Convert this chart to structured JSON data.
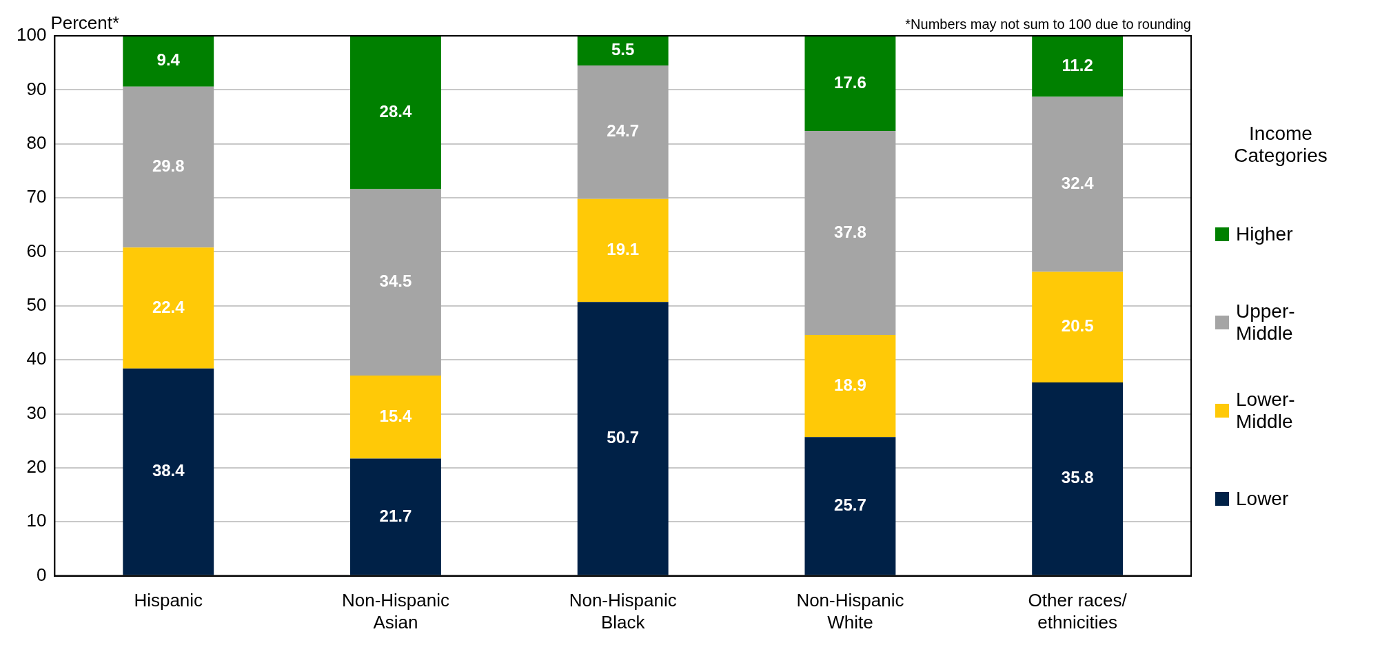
{
  "chart_data": {
    "type": "bar",
    "stacked": true,
    "ylabel": "Percent*",
    "annotations": [
      "*Numbers may not sum to 100 due to rounding"
    ],
    "categories": [
      "Hispanic",
      "Non-Hispanic Asian",
      "Non-Hispanic Black",
      "Non-Hispanic White",
      "Other races/ ethnicities"
    ],
    "series": [
      {
        "name": "Lower",
        "color": "#002147",
        "values": [
          38.4,
          21.7,
          50.7,
          25.7,
          35.8
        ]
      },
      {
        "name": "Lower-Middle",
        "color": "#ffc907",
        "values": [
          22.4,
          15.4,
          19.1,
          18.9,
          20.5
        ]
      },
      {
        "name": "Upper-Middle",
        "color": "#a5a5a5",
        "values": [
          29.8,
          34.5,
          24.7,
          37.8,
          32.4
        ]
      },
      {
        "name": "Higher",
        "color": "#008000",
        "values": [
          9.4,
          28.4,
          5.5,
          17.6,
          11.2
        ]
      }
    ],
    "ylim": [
      0,
      100
    ],
    "yticks": [
      0,
      10,
      20,
      30,
      40,
      50,
      60,
      70,
      80,
      90,
      100
    ],
    "grid": "y",
    "legend": "right",
    "legend_title": "Income Categories",
    "data_labels": true
  }
}
